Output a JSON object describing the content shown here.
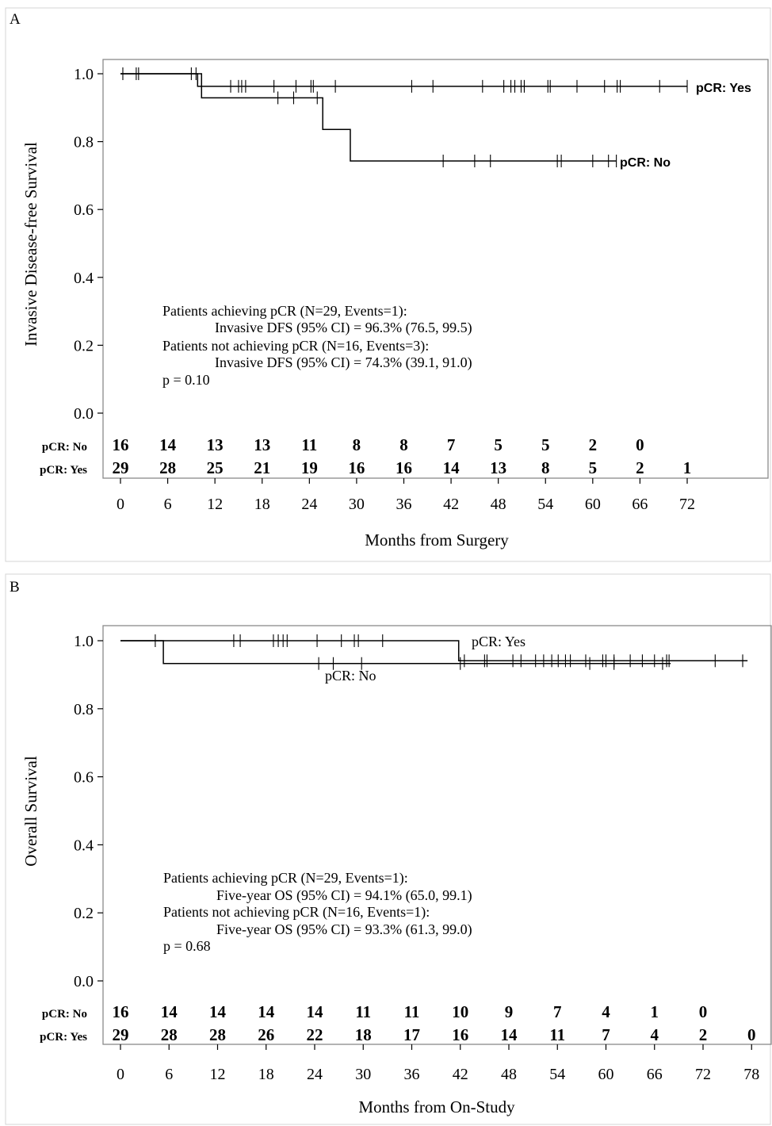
{
  "chart_data": [
    {
      "panel_label": "A",
      "type": "line",
      "subtype": "kaplan-meier",
      "xlabel": "Months from Surgery",
      "ylabel": "Invasive Disease-free Survival",
      "xlim": [
        0,
        72
      ],
      "ylim": [
        0.0,
        1.0
      ],
      "x_ticks": [
        "0",
        "6",
        "12",
        "18",
        "24",
        "30",
        "36",
        "42",
        "48",
        "54",
        "60",
        "66",
        "72"
      ],
      "y_ticks": [
        "0.0",
        "0.2",
        "0.4",
        "0.6",
        "0.8",
        "1.0"
      ],
      "grid": false,
      "series": [
        {
          "name": "pCR: Yes",
          "steps": [
            [
              0,
              1.0
            ],
            [
              9.8,
              0.963
            ],
            [
              72,
              0.963
            ]
          ],
          "censors": [
            0.3,
            2.0,
            2.3,
            9.0,
            9.6,
            14.0,
            15.0,
            15.4,
            15.9,
            19.5,
            22.3,
            24.2,
            24.5,
            27.3,
            37.0,
            39.7,
            46.0,
            48.7,
            49.6,
            50.1,
            50.9,
            51.3,
            54.3,
            54.6,
            58.0,
            61.5,
            63.1,
            63.5,
            68.5,
            72.0
          ]
        },
        {
          "name": "pCR: No",
          "steps": [
            [
              0,
              1.0
            ],
            [
              10.3,
              0.929
            ],
            [
              25.7,
              0.836
            ],
            [
              29.2,
              0.743
            ],
            [
              63.0,
              0.743
            ]
          ],
          "censors": [
            20.0,
            22.0,
            25.0,
            41.0,
            45.0,
            47.0,
            55.5,
            56.0,
            60.0,
            62.0,
            63.0
          ]
        }
      ],
      "at_risk": {
        "x": [
          0,
          6,
          12,
          18,
          24,
          30,
          36,
          42,
          48,
          54,
          60,
          66,
          72
        ],
        "rows": [
          {
            "label": "pCR: No",
            "values": [
              "16",
              "14",
              "13",
              "13",
              "11",
              "8",
              "8",
              "7",
              "5",
              "5",
              "2",
              "0",
              ""
            ]
          },
          {
            "label": "pCR: Yes",
            "values": [
              "29",
              "28",
              "25",
              "21",
              "19",
              "16",
              "16",
              "14",
              "13",
              "8",
              "5",
              "2",
              "1"
            ]
          }
        ]
      },
      "annotations": [
        "Patients achieving pCR (N=29, Events=1):",
        "Invasive DFS (95% CI) = 96.3% (76.5, 99.5)",
        "Patients not achieving pCR (N=16, Events=3):",
        "Invasive DFS (95% CI) = 74.3% (39.1, 91.0)",
        "p = 0.10"
      ]
    },
    {
      "panel_label": "B",
      "type": "line",
      "subtype": "kaplan-meier",
      "xlabel": "Months from On-Study",
      "ylabel": "Overall Survival",
      "xlim": [
        0,
        78
      ],
      "ylim": [
        0.0,
        1.0
      ],
      "x_ticks": [
        "0",
        "6",
        "12",
        "18",
        "24",
        "30",
        "36",
        "42",
        "48",
        "54",
        "60",
        "66",
        "72",
        "78"
      ],
      "y_ticks": [
        "0.0",
        "0.2",
        "0.4",
        "0.6",
        "0.8",
        "1.0"
      ],
      "grid": false,
      "series": [
        {
          "name": "pCR: Yes",
          "steps": [
            [
              0,
              1.0
            ],
            [
              41.8,
              0.941
            ],
            [
              77.5,
              0.941
            ]
          ],
          "censors": [
            4.3,
            14.0,
            14.8,
            18.9,
            19.5,
            20.1,
            20.6,
            24.3,
            27.3,
            28.9,
            29.4,
            32.4,
            42.5,
            45.0,
            45.3,
            48.5,
            49.5,
            51.3,
            52.3,
            53.3,
            54.1,
            55.0,
            55.6,
            57.5,
            59.6,
            60.0,
            61.0,
            63.0,
            64.5,
            66.0,
            67.5,
            67.8,
            73.5,
            76.9
          ]
        },
        {
          "name": "pCR: No",
          "steps": [
            [
              0,
              1.0
            ],
            [
              5.3,
              0.933
            ],
            [
              68.0,
              0.933
            ]
          ],
          "censors": [
            24.5,
            26.3,
            29.8,
            42.0,
            58.0,
            61.0,
            67.0
          ]
        }
      ],
      "at_risk": {
        "x": [
          0,
          6,
          12,
          18,
          24,
          30,
          36,
          42,
          48,
          54,
          60,
          66,
          72,
          78
        ],
        "rows": [
          {
            "label": "pCR: No",
            "values": [
              "16",
              "14",
              "14",
              "14",
              "14",
              "11",
              "11",
              "10",
              "9",
              "7",
              "4",
              "1",
              "0",
              ""
            ]
          },
          {
            "label": "pCR: Yes",
            "values": [
              "29",
              "28",
              "28",
              "26",
              "22",
              "18",
              "17",
              "16",
              "14",
              "11",
              "7",
              "4",
              "2",
              "0"
            ]
          }
        ]
      },
      "annotations": [
        "Patients achieving pCR (N=29, Events=1):",
        "Five-year OS (95% CI) = 94.1% (65.0, 99.1)",
        "Patients not achieving pCR (N=16, Events=1):",
        "Five-year OS (95% CI) = 93.3% (61.3, 99.0)",
        "p = 0.68"
      ]
    }
  ]
}
